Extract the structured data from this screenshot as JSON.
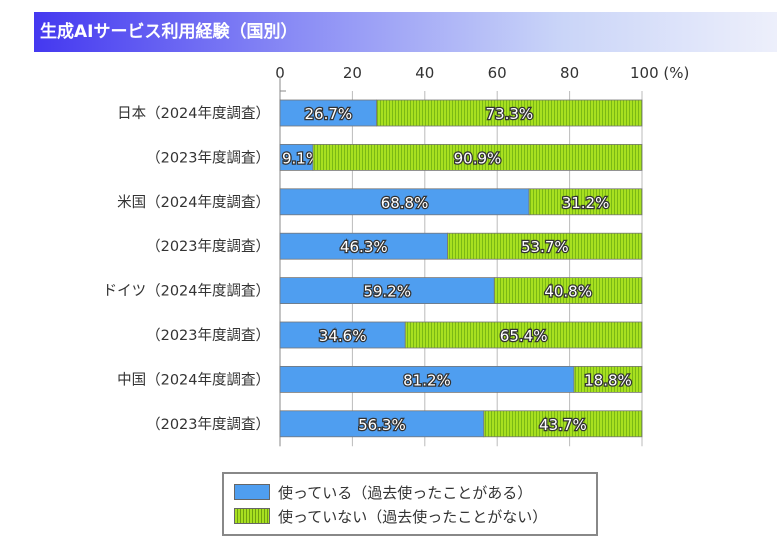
{
  "title": "生成AIサービス利用経験（国別）",
  "chart_data": {
    "type": "bar",
    "orientation": "horizontal",
    "stacked": true,
    "title": "生成AIサービス利用経験（国別）",
    "xlim": [
      0,
      100
    ],
    "x_ticks": [
      "0",
      "20",
      "40",
      "60",
      "80",
      "100 (%)"
    ],
    "grid": true,
    "categories": [
      "日本（2024年度調査）",
      "（2023年度調査）",
      "米国（2024年度調査）",
      "（2023年度調査）",
      "ドイツ（2024年度調査）",
      "（2023年度調査）",
      "中国（2024年度調査）",
      "（2023年度調査）"
    ],
    "series": [
      {
        "name": "使っている（過去使ったことがある）",
        "color": "#4f9ef0",
        "values": [
          26.7,
          9.1,
          68.8,
          46.3,
          59.2,
          34.6,
          81.2,
          56.3
        ],
        "labels": [
          "26.7%",
          "9.1%",
          "68.8%",
          "46.3%",
          "59.2%",
          "34.6%",
          "81.2%",
          "56.3%"
        ]
      },
      {
        "name": "使っていない（過去使ったことがない）",
        "color": "#a8e020",
        "values": [
          73.3,
          90.9,
          31.2,
          53.7,
          40.8,
          65.4,
          18.8,
          43.7
        ],
        "labels": [
          "73.3%",
          "90.9%",
          "31.2%",
          "53.7%",
          "40.8%",
          "65.4%",
          "18.8%",
          "43.7%"
        ]
      }
    ],
    "legend_placement": "bottom"
  }
}
